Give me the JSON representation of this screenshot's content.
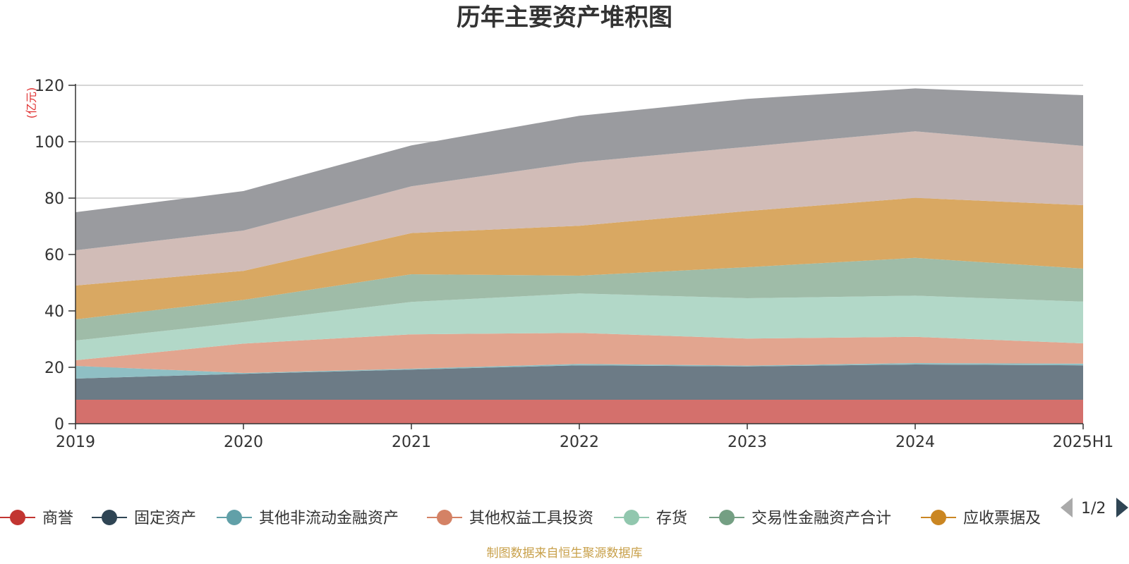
{
  "chart_data": {
    "type": "area",
    "stacked": true,
    "title": "历年主要资产堆积图",
    "unit_label": "(亿元)",
    "x": [
      "2019",
      "2020",
      "2021",
      "2022",
      "2023",
      "2024",
      "2025H1"
    ],
    "ylim": [
      0,
      120
    ],
    "yticks": [
      0,
      20,
      40,
      60,
      80,
      100,
      120
    ],
    "grid": true,
    "series": [
      {
        "name": "商誉",
        "color": "#c23531",
        "area_color": "#d4706c",
        "values": [
          8.5,
          8.5,
          8.5,
          8.5,
          8.5,
          8.5,
          8.5
        ]
      },
      {
        "name": "固定资产",
        "color": "#2f4554",
        "area_color": "#6c7b86",
        "values": [
          7.5,
          9.2,
          10.7,
          12.2,
          11.8,
          12.5,
          12.2
        ]
      },
      {
        "name": "其他非流动金融资产",
        "color": "#61a0a8",
        "area_color": "#8fbfc4",
        "values": [
          4.5,
          0.3,
          0.3,
          0.5,
          0.3,
          0.5,
          0.6
        ]
      },
      {
        "name": "其他权益工具投资",
        "color": "#d48265",
        "area_color": "#e2a58f",
        "values": [
          2.0,
          10.4,
          12.2,
          11.0,
          9.6,
          9.3,
          7.2
        ]
      },
      {
        "name": "存货",
        "color": "#91c7ae",
        "area_color": "#b2d8c8",
        "values": [
          7.0,
          7.6,
          11.5,
          14.0,
          14.3,
          14.6,
          14.8
        ]
      },
      {
        "name": "交易性金融资产合计",
        "color": "#749f83",
        "area_color": "#9fbca8",
        "values": [
          7.5,
          7.9,
          9.8,
          6.3,
          11.0,
          13.4,
          11.7
        ]
      },
      {
        "name": "应收票据及",
        "color": "#ca8622",
        "area_color": "#d9a862",
        "values": [
          12.0,
          10.3,
          14.6,
          17.7,
          19.9,
          21.3,
          22.5
        ]
      },
      {
        "name": "",
        "color": "#bda29a",
        "area_color": "#d1bcb7",
        "values": [
          12.5,
          14.3,
          16.6,
          22.5,
          22.8,
          23.6,
          21.0
        ]
      },
      {
        "name": "",
        "color": "#6e7074",
        "area_color": "#9a9b9f",
        "values": [
          13.5,
          14.0,
          14.5,
          16.5,
          17.0,
          15.2,
          18.0
        ]
      }
    ],
    "legend": {
      "position": "bottom",
      "page": "1/2"
    },
    "source_note": "制图数据来自恒生聚源数据库"
  }
}
